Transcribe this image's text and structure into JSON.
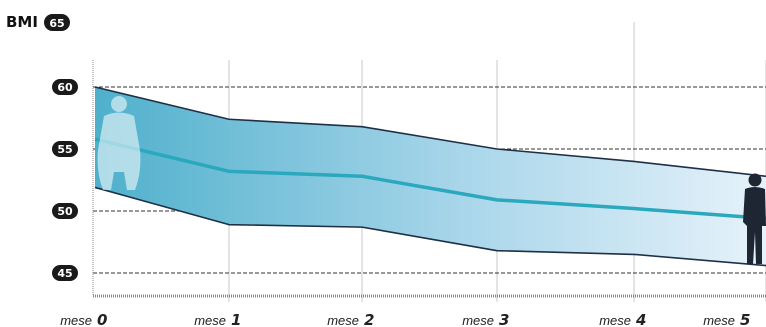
{
  "chart_data": {
    "type": "area",
    "title": "BMI",
    "title_badge": "65",
    "x": [
      0,
      1,
      2,
      3,
      4,
      5
    ],
    "categories": [
      "0",
      "1",
      "2",
      "3",
      "4",
      "5"
    ],
    "x_tick_prefix": "mese",
    "y_ticks": [
      "60",
      "55",
      "50",
      "45"
    ],
    "ylim": [
      43.5,
      61.5
    ],
    "series": [
      {
        "name": "",
        "role": "upper",
        "values": [
          60.0,
          57.4,
          56.8,
          55.0,
          54.0,
          52.8
        ]
      },
      {
        "name": "",
        "role": "middle",
        "values": [
          55.8,
          53.2,
          52.8,
          50.9,
          50.2,
          49.4
        ]
      },
      {
        "name": "",
        "role": "lower",
        "values": [
          51.9,
          48.9,
          48.7,
          46.8,
          46.5,
          45.6
        ]
      }
    ],
    "grid": {
      "horizontal": "dashed",
      "vertical": "solid"
    },
    "colors": {
      "band_dark": "#4fb0cc",
      "band_light": "#e6f2fa",
      "middle_line": "#2aa8be",
      "edge_line": "#1f2f45",
      "badge": "#1a1a1a",
      "grid_h": "#333333",
      "grid_v": "#c8c8c8"
    },
    "icons": [
      "overweight-silhouette-icon",
      "slim-silhouette-icon"
    ]
  }
}
